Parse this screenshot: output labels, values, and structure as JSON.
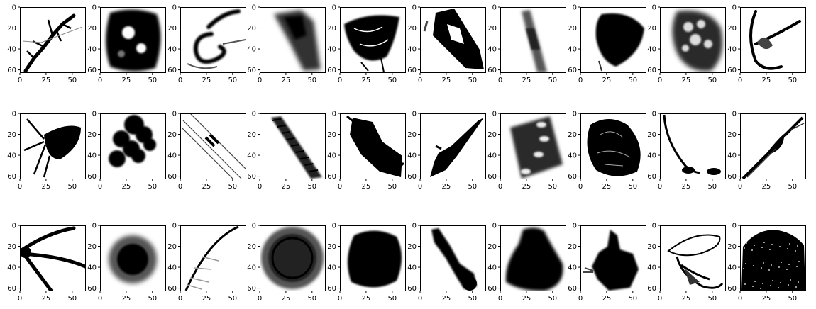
{
  "figure": {
    "rows": 3,
    "cols": 10,
    "axis": {
      "x_range": [
        0,
        63
      ],
      "y_range": [
        0,
        63
      ],
      "x_ticks": [
        0,
        25,
        50
      ],
      "y_ticks": [
        0,
        20,
        40,
        60
      ],
      "x_tick_labels": [
        "0",
        "25",
        "50"
      ],
      "y_tick_labels": [
        "0",
        "20",
        "40",
        "60"
      ]
    },
    "colors": {
      "ink": "#000000",
      "background": "#ffffff",
      "frame": "#000000"
    },
    "panels": [
      {
        "name": "panel-r1-c1",
        "shape": "branching-streak"
      },
      {
        "name": "panel-r1-c2",
        "shape": "dense-blob-with-holes"
      },
      {
        "name": "panel-r1-c3",
        "shape": "curled-filament"
      },
      {
        "name": "panel-r1-c4",
        "shape": "blurred-diagonal-band"
      },
      {
        "name": "panel-r1-c5",
        "shape": "tangled-mass"
      },
      {
        "name": "panel-r1-c6",
        "shape": "dark-tilted-patch"
      },
      {
        "name": "panel-r1-c7",
        "shape": "faint-diagonal-streak"
      },
      {
        "name": "panel-r1-c8",
        "shape": "dark-leaf-blob"
      },
      {
        "name": "panel-r1-c9",
        "shape": "blob-with-light-spots"
      },
      {
        "name": "panel-r1-c10",
        "shape": "hooked-curve"
      },
      {
        "name": "panel-r2-c1",
        "shape": "tailed-blob"
      },
      {
        "name": "panel-r2-c2",
        "shape": "clumped-blobs"
      },
      {
        "name": "panel-r2-c3",
        "shape": "thin-diagonal-tube"
      },
      {
        "name": "panel-r2-c4",
        "shape": "striped-diagonal-band"
      },
      {
        "name": "panel-r2-c5",
        "shape": "rough-diagonal-mass"
      },
      {
        "name": "panel-r2-c6",
        "shape": "tapered-diagonal-body"
      },
      {
        "name": "panel-r2-c7",
        "shape": "band-with-bright-dots"
      },
      {
        "name": "panel-r2-c8",
        "shape": "oval-textured-body"
      },
      {
        "name": "panel-r2-c9",
        "shape": "long-curved-line"
      },
      {
        "name": "panel-r2-c10",
        "shape": "diagonal-spindle"
      },
      {
        "name": "panel-r3-c1",
        "shape": "three-arm-star"
      },
      {
        "name": "panel-r3-c2",
        "shape": "fuzzy-round-blob"
      },
      {
        "name": "panel-r3-c3",
        "shape": "arc-with-fibrils"
      },
      {
        "name": "panel-r3-c4",
        "shape": "ringed-sphere"
      },
      {
        "name": "panel-r3-c5",
        "shape": "lumpy-round-blob"
      },
      {
        "name": "panel-r3-c6",
        "shape": "segmented-rod"
      },
      {
        "name": "panel-r3-c7",
        "shape": "dark-bell-blob"
      },
      {
        "name": "panel-r3-c8",
        "shape": "irregular-dark-body"
      },
      {
        "name": "panel-r3-c9",
        "shape": "wing-outline"
      },
      {
        "name": "panel-r3-c10",
        "shape": "speckled-dome"
      }
    ]
  }
}
